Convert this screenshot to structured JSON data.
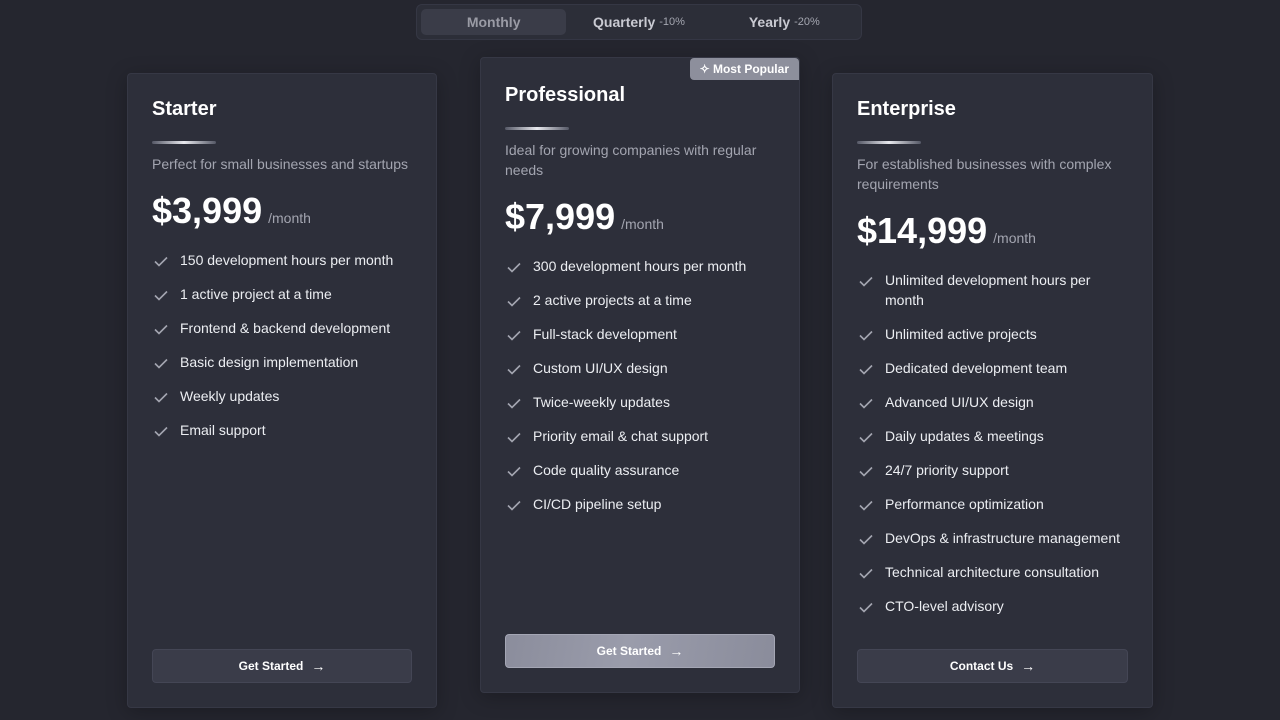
{
  "billing_toggle": {
    "options": [
      {
        "label": "Monthly",
        "discount": ""
      },
      {
        "label": "Quarterly",
        "discount": "-10%"
      },
      {
        "label": "Yearly",
        "discount": "-20%"
      }
    ],
    "selected": "Monthly"
  },
  "plans": [
    {
      "name": "Starter",
      "description": "Perfect for small businesses and startups",
      "price": "$3,999",
      "period": "/month",
      "features": [
        "150 development hours per month",
        "1 active project at a time",
        "Frontend & backend development",
        "Basic design implementation",
        "Weekly updates",
        "Email support"
      ],
      "cta": "Get Started"
    },
    {
      "name": "Professional",
      "badge": "Most Popular",
      "description": "Ideal for growing companies with regular needs",
      "price": "$7,999",
      "period": "/month",
      "features": [
        "300 development hours per month",
        "2 active projects at a time",
        "Full-stack development",
        "Custom UI/UX design",
        "Twice-weekly updates",
        "Priority email & chat support",
        "Code quality assurance",
        "CI/CD pipeline setup"
      ],
      "cta": "Get Started"
    },
    {
      "name": "Enterprise",
      "description": "For established businesses with complex requirements",
      "price": "$14,999",
      "period": "/month",
      "features": [
        "Unlimited development hours per month",
        "Unlimited active projects",
        "Dedicated development team",
        "Advanced UI/UX design",
        "Daily updates & meetings",
        "24/7 priority support",
        "Performance optimization",
        "DevOps & infrastructure management",
        "Technical architecture consultation",
        "CTO-level advisory"
      ],
      "cta": "Contact Us"
    }
  ],
  "colors": {
    "background": "#25262f",
    "card": "#2d2f3a",
    "accent_button": "#8b8d9c"
  }
}
